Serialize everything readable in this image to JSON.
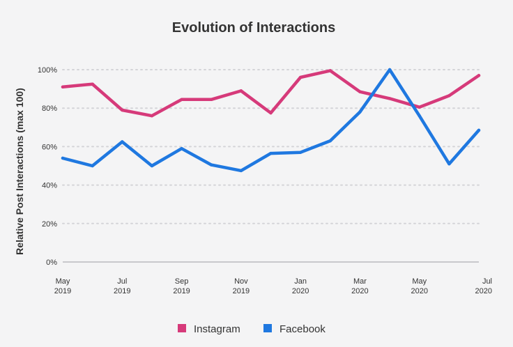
{
  "chart_data": {
    "type": "line",
    "title": "Evolution of Interactions",
    "xlabel": "",
    "ylabel": "Relative Post Interactions (max 100)",
    "ylim": [
      0,
      100
    ],
    "yticks": [
      "0%",
      "20%",
      "40%",
      "60%",
      "80%",
      "100%"
    ],
    "x": [
      "2019-05",
      "2019-06",
      "2019-07",
      "2019-08",
      "2019-09",
      "2019-10",
      "2019-11",
      "2019-12",
      "2020-01",
      "2020-02",
      "2020-03",
      "2020-04",
      "2020-05",
      "2020-06",
      "2020-07"
    ],
    "xticks": [
      {
        "at": "2019-05",
        "line1": "May",
        "line2": "2019"
      },
      {
        "at": "2019-07",
        "line1": "Jul",
        "line2": "2019"
      },
      {
        "at": "2019-09",
        "line1": "Sep",
        "line2": "2019"
      },
      {
        "at": "2019-11",
        "line1": "Nov",
        "line2": "2019"
      },
      {
        "at": "2020-01",
        "line1": "Jan",
        "line2": "2020"
      },
      {
        "at": "2020-03",
        "line1": "Mar",
        "line2": "2020"
      },
      {
        "at": "2020-05",
        "line1": "May",
        "line2": "2020"
      },
      {
        "at": "2020-07",
        "line1": "Jul",
        "line2": "2020"
      }
    ],
    "series": [
      {
        "name": "Instagram",
        "color": "#d63a7a",
        "values": [
          91,
          92.5,
          79,
          76,
          84.5,
          84.5,
          89,
          77.5,
          96,
          99.5,
          88.5,
          85,
          80.5,
          86.5,
          97
        ]
      },
      {
        "name": "Facebook",
        "color": "#1f78e0",
        "values": [
          54,
          50,
          62.5,
          50,
          59,
          50.5,
          47.5,
          56.5,
          57,
          63,
          78,
          100,
          76,
          51,
          68.5
        ]
      }
    ],
    "grid": true,
    "legend": "bottom-center"
  }
}
